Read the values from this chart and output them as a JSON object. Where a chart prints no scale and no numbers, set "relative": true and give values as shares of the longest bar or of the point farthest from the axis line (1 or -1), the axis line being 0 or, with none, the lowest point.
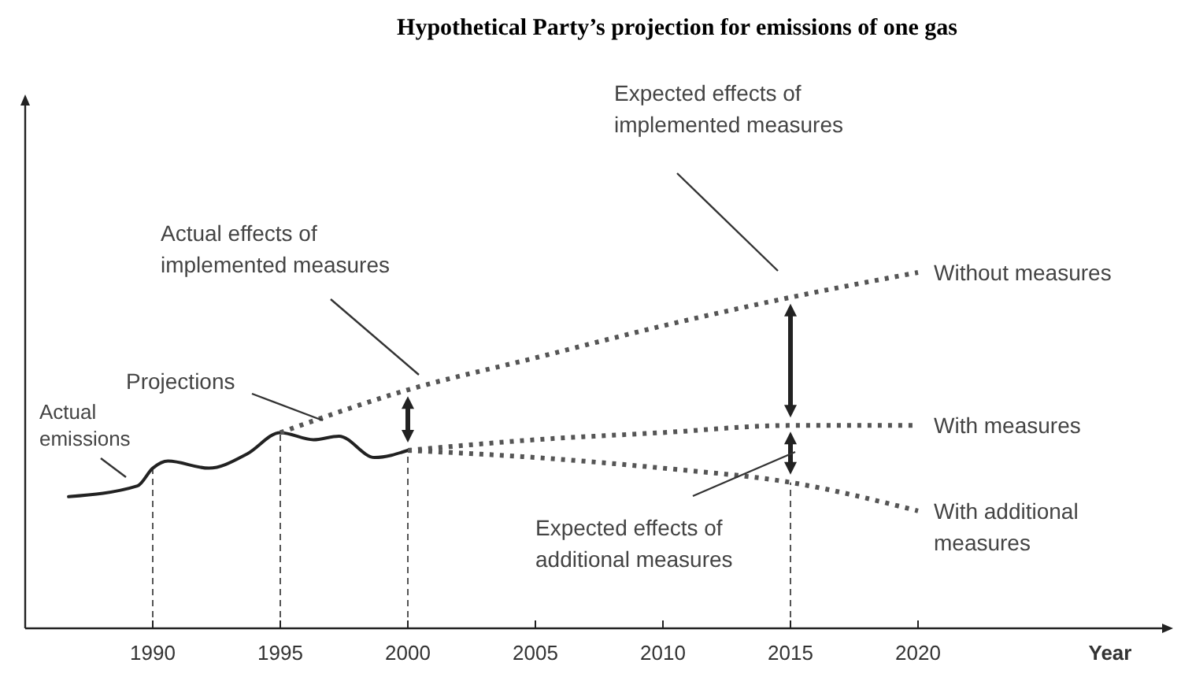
{
  "chart_data": {
    "type": "line",
    "title": "Hypothetical Party’s projection for emissions of one gas",
    "xlabel": "Year",
    "relative": true,
    "xlim": [
      1985,
      2030
    ],
    "xticks": [
      1990,
      1995,
      2000,
      2005,
      2010,
      2015,
      2020
    ],
    "marker": "none",
    "series": [
      {
        "color": "#222222",
        "line_style": "solid",
        "x": [
          1986.7,
          1989.4,
          1990,
          1990.6,
          1992.2,
          1993.7,
          1995,
          1996.3,
          1997.3,
          1998.7,
          2000
        ],
        "values": [
          0.37,
          0.4,
          0.45,
          0.47,
          0.45,
          0.49,
          0.55,
          0.53,
          0.54,
          0.48,
          0.5
        ]
      },
      {
        "name": "Without measures",
        "color": "#555555",
        "line_style": "dotted",
        "x": [
          1995,
          2000,
          2005,
          2010,
          2015,
          2020
        ],
        "values": [
          0.55,
          0.67,
          0.76,
          0.85,
          0.93,
          1.0
        ]
      },
      {
        "name": "With measures",
        "color": "#555555",
        "line_style": "dotted",
        "x": [
          2000,
          2005,
          2010,
          2015,
          2020
        ],
        "values": [
          0.5,
          0.53,
          0.55,
          0.57,
          0.57
        ]
      },
      {
        "name": "With additional measures",
        "color": "#555555",
        "line_style": "dotted",
        "x": [
          2000,
          2005,
          2010,
          2015,
          2020
        ],
        "values": [
          0.5,
          0.48,
          0.45,
          0.41,
          0.33
        ]
      }
    ],
    "ref_lines": [
      {
        "axis": "x",
        "value": 1990,
        "line_style": "dashed"
      },
      {
        "axis": "x",
        "value": 1995,
        "line_style": "dashed"
      },
      {
        "axis": "x",
        "value": 2000,
        "line_style": "dashed"
      },
      {
        "axis": "x",
        "value": 2015,
        "line_style": "dashed"
      }
    ],
    "annotations": [
      "Actual emissions",
      "Projections",
      "Actual effects of implemented measures",
      "Expected effects of implemented measures",
      "Expected effects of additional measures"
    ]
  }
}
